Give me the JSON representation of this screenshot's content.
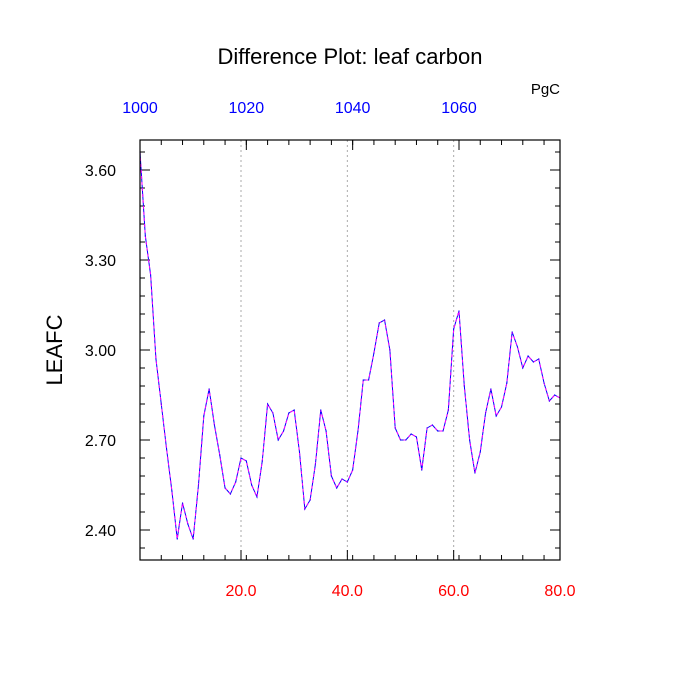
{
  "chart_data": {
    "type": "line",
    "title": "Difference Plot: leaf carbon",
    "units_label": "PgC",
    "ylabel": "LEAFC",
    "xlabel": "",
    "xlim": [
      1,
      80
    ],
    "ylim": [
      2.3,
      3.7
    ],
    "bottom_axis": {
      "ticks": [
        20,
        40,
        60,
        80
      ],
      "tick_labels": [
        "20.0",
        "40.0",
        "60.0",
        "80.0"
      ],
      "color": "#ff0000"
    },
    "top_axis": {
      "offset": 999,
      "ticks": [
        1000,
        1020,
        1040,
        1060
      ],
      "tick_labels": [
        "1000",
        "1020",
        "1040",
        "1060"
      ],
      "color": "#0000ff"
    },
    "left_axis": {
      "ticks": [
        2.4,
        2.7,
        3.0,
        3.3,
        3.6
      ],
      "tick_labels": [
        "2.40",
        "2.70",
        "3.00",
        "3.30",
        "3.60"
      ]
    },
    "grid": "vertical-dotted",
    "series": [
      {
        "line_color": "#0000ff",
        "dash_color": "#ff00ff",
        "x": [
          1,
          2,
          3,
          4,
          5,
          6,
          7,
          8,
          9,
          10,
          11,
          12,
          13,
          14,
          15,
          16,
          17,
          18,
          19,
          20,
          21,
          22,
          23,
          24,
          25,
          26,
          27,
          28,
          29,
          30,
          31,
          32,
          33,
          34,
          35,
          36,
          37,
          38,
          39,
          40,
          41,
          42,
          43,
          44,
          45,
          46,
          47,
          48,
          49,
          50,
          51,
          52,
          53,
          54,
          55,
          56,
          57,
          58,
          59,
          60,
          61,
          62,
          63,
          64,
          65,
          66,
          67,
          68,
          69,
          70,
          71,
          72,
          73,
          74,
          75,
          76,
          77,
          78,
          79,
          80
        ],
        "values": [
          3.66,
          3.38,
          3.25,
          2.97,
          2.82,
          2.67,
          2.53,
          2.37,
          2.49,
          2.42,
          2.37,
          2.55,
          2.78,
          2.87,
          2.75,
          2.65,
          2.54,
          2.52,
          2.56,
          2.64,
          2.63,
          2.55,
          2.51,
          2.63,
          2.82,
          2.79,
          2.7,
          2.73,
          2.79,
          2.8,
          2.66,
          2.47,
          2.5,
          2.62,
          2.8,
          2.73,
          2.58,
          2.54,
          2.57,
          2.56,
          2.6,
          2.73,
          2.9,
          2.9,
          2.99,
          3.09,
          3.1,
          3.0,
          2.74,
          2.7,
          2.7,
          2.72,
          2.71,
          2.6,
          2.74,
          2.75,
          2.73,
          2.73,
          2.8,
          3.07,
          3.13,
          2.88,
          2.7,
          2.59,
          2.66,
          2.79,
          2.87,
          2.78,
          2.81,
          2.89,
          3.06,
          3.01,
          2.94,
          2.98,
          2.96,
          2.97,
          2.89,
          2.83,
          2.85,
          2.84
        ]
      }
    ]
  }
}
